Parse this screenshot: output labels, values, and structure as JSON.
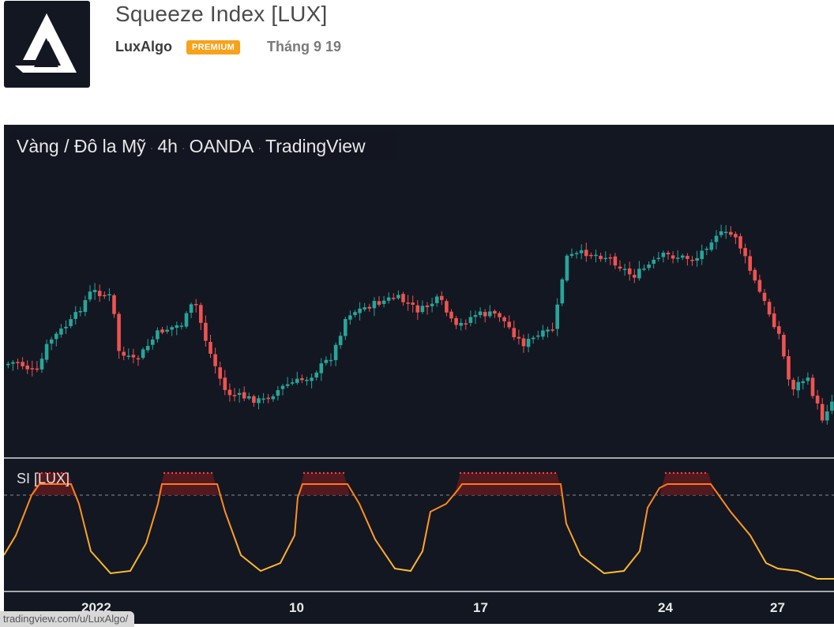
{
  "header": {
    "title": "Squeeze Index [LUX]",
    "author": "LuxAlgo",
    "badge": "PREMIUM",
    "date": "Tháng 9 19",
    "logo_icon": "luxalgo-logo-icon"
  },
  "chart": {
    "symbol": "Vàng / Đô la Mỹ",
    "timeframe": "4h",
    "broker": "OANDA",
    "platform": "TradingView",
    "indicator_label": "SI [LUX]",
    "date_labels": [
      "2022",
      "10",
      "17",
      "24",
      "27"
    ],
    "url": "tradingview.com/u/LuxAlgo/",
    "colors": {
      "background": "#131722",
      "up_candle": "#26a69a",
      "down_candle": "#ef5350",
      "squeeze_fill": "#5a1a1e",
      "squeeze_dots": "#ff3b3b",
      "oscillator_hot": "#ff7a1a",
      "oscillator_cool": "#ffc233"
    }
  },
  "chart_data": {
    "type": "candlestick",
    "panes": [
      "price",
      "indicator"
    ],
    "x_tick_labels": [
      "2022",
      "10",
      "17",
      "24",
      "27"
    ],
    "indicator": {
      "name": "SI [LUX]",
      "threshold_line": "dashed",
      "squeeze_zones": 5
    }
  }
}
